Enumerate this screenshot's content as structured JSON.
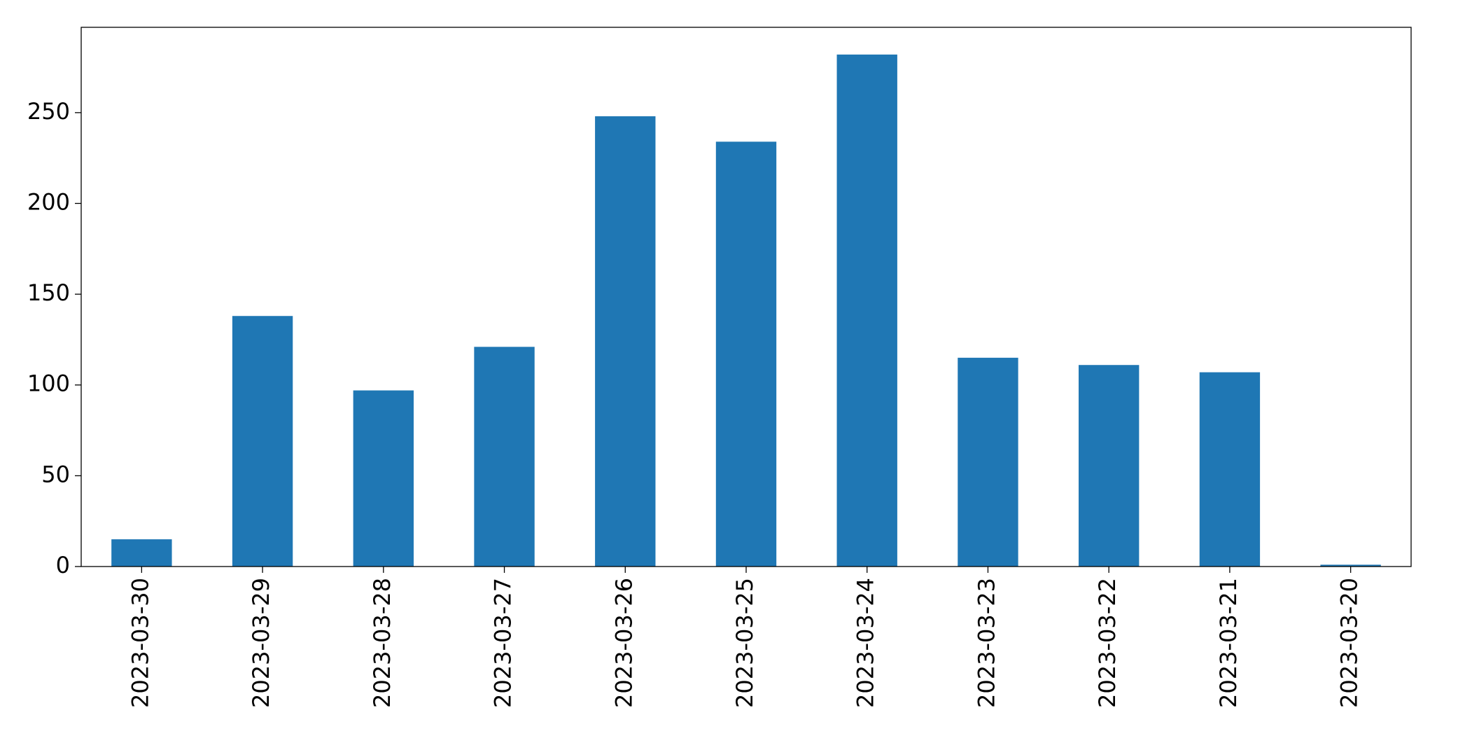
{
  "chart_data": {
    "type": "bar",
    "categories": [
      "2023-03-30",
      "2023-03-29",
      "2023-03-28",
      "2023-03-27",
      "2023-03-26",
      "2023-03-25",
      "2023-03-24",
      "2023-03-23",
      "2023-03-22",
      "2023-03-21",
      "2023-03-20"
    ],
    "values": [
      15,
      138,
      97,
      121,
      248,
      234,
      282,
      115,
      111,
      107,
      1
    ],
    "color": "#1f77b4",
    "ylim": [
      0,
      297
    ],
    "yticks": [
      0,
      50,
      100,
      150,
      200,
      250
    ],
    "grid": false
  }
}
